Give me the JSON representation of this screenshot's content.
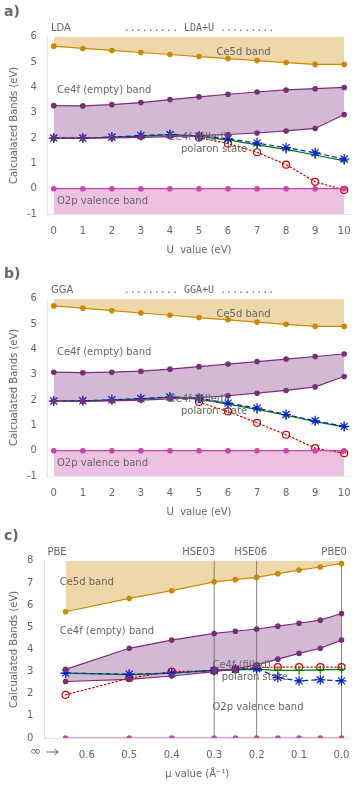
{
  "chart_data": [
    {
      "type": "line",
      "title": "a)",
      "xlabel": "U  value (eV)",
      "ylabel": "Calcualated Bands (eV)",
      "x": [
        0,
        1,
        2,
        3,
        4,
        5,
        6,
        7,
        8,
        9,
        10
      ],
      "xlim": [
        -0.2,
        10.2
      ],
      "xticks": [
        0,
        1,
        2,
        3,
        4,
        5,
        6,
        7,
        8,
        9,
        10
      ],
      "ylim": [
        -1,
        6
      ],
      "yticks": [
        -1,
        0,
        1,
        2,
        3,
        4,
        5,
        6
      ],
      "grid": false,
      "series": [
        {
          "type": "area",
          "color": "#cc8800",
          "marker": "circle",
          "line_style": "solid",
          "values": [
            5.63,
            5.54,
            5.46,
            5.38,
            5.3,
            5.22,
            5.14,
            5.06,
            4.98,
            4.91,
            4.91
          ]
        },
        {
          "type": "area",
          "color": "#7a2d7a",
          "marker": "circle",
          "line_style": "solid",
          "values": [
            3.28,
            3.27,
            3.32,
            3.4,
            3.52,
            3.63,
            3.73,
            3.82,
            3.9,
            3.95,
            4.0
          ]
        },
        {
          "type": "line",
          "color": "#7a2d7a",
          "marker": "circle",
          "line_style": "solid",
          "values": [
            2.0,
            2.0,
            2.01,
            2.03,
            2.06,
            2.1,
            2.14,
            2.2,
            2.28,
            2.38,
            2.93
          ]
        },
        {
          "type": "area",
          "color": "#cc44aa",
          "marker": "circle",
          "line_style": "solid",
          "values": [
            0.0,
            0.0,
            0.0,
            0.0,
            0.0,
            0.0,
            0.0,
            0.0,
            0.0,
            0.0,
            0.0
          ]
        },
        {
          "type": "line",
          "color": "#0022cc",
          "marker": "star",
          "line_style": "dashed",
          "values": [
            2.0,
            2.0,
            2.04,
            2.1,
            2.14,
            2.08,
            1.97,
            1.8,
            1.62,
            1.42,
            1.17
          ]
        },
        {
          "type": "line",
          "color": "#007700",
          "marker": "plus",
          "line_style": "solid",
          "values": [
            2.0,
            2.0,
            2.03,
            2.08,
            2.13,
            2.07,
            1.93,
            1.73,
            1.55,
            1.33,
            1.1
          ]
        },
        {
          "type": "line",
          "color": "#cc0000",
          "marker": "open_circle",
          "line_style": "dotted",
          "values": [
            null,
            null,
            null,
            null,
            null,
            2.02,
            1.78,
            1.44,
            0.95,
            0.27,
            -0.05
          ]
        }
      ],
      "annotations": [
        "LDA",
        "......... LDA+U .........",
        "Ce5d band",
        "Ce4f (empty) band",
        "Ce4f (filled)",
        "polaron state",
        "O2p valence band"
      ]
    },
    {
      "type": "line",
      "title": "b)",
      "xlabel": "U  value (eV)",
      "ylabel": "Calcualated Bands (eV)",
      "x": [
        0,
        1,
        2,
        3,
        4,
        5,
        6,
        7,
        8,
        9,
        10
      ],
      "xlim": [
        -0.2,
        10.2
      ],
      "xticks": [
        0,
        1,
        2,
        3,
        4,
        5,
        6,
        7,
        8,
        9,
        10
      ],
      "ylim": [
        -1,
        6
      ],
      "yticks": [
        -1,
        0,
        1,
        2,
        3,
        4,
        5,
        6
      ],
      "grid": false,
      "series": [
        {
          "type": "area",
          "color": "#cc8800",
          "marker": "circle",
          "line_style": "solid",
          "values": [
            5.72,
            5.63,
            5.53,
            5.44,
            5.35,
            5.26,
            5.17,
            5.08,
            4.99,
            4.91,
            4.91
          ]
        },
        {
          "type": "area",
          "color": "#7a2d7a",
          "marker": "circle",
          "line_style": "solid",
          "values": [
            3.1,
            3.08,
            3.1,
            3.14,
            3.22,
            3.32,
            3.42,
            3.52,
            3.62,
            3.72,
            3.82
          ]
        },
        {
          "type": "line",
          "color": "#7a2d7a",
          "marker": "circle",
          "line_style": "solid",
          "values": [
            1.96,
            1.95,
            1.97,
            2.0,
            2.05,
            2.1,
            2.17,
            2.27,
            2.38,
            2.52,
            2.93
          ]
        },
        {
          "type": "area",
          "color": "#cc44aa",
          "marker": "circle",
          "line_style": "solid",
          "values": [
            0.0,
            0.0,
            0.0,
            0.0,
            0.0,
            0.0,
            0.0,
            0.0,
            0.0,
            0.0,
            0.0
          ]
        },
        {
          "type": "line",
          "color": "#0022cc",
          "marker": "star",
          "line_style": "dashed",
          "values": [
            1.96,
            1.97,
            2.01,
            2.06,
            2.12,
            2.07,
            1.88,
            1.68,
            1.43,
            1.18,
            0.96
          ]
        },
        {
          "type": "line",
          "color": "#007700",
          "marker": "plus",
          "line_style": "solid",
          "values": [
            1.96,
            1.97,
            2.0,
            2.05,
            2.11,
            2.04,
            1.84,
            1.63,
            1.4,
            1.15,
            0.94
          ]
        },
        {
          "type": "line",
          "color": "#cc0000",
          "marker": "open_circle",
          "line_style": "dotted",
          "values": [
            null,
            null,
            null,
            null,
            null,
            1.92,
            1.55,
            1.1,
            0.63,
            0.1,
            -0.1
          ]
        }
      ],
      "annotations": [
        "GGA",
        "......... GGA+U .........",
        "Ce5d band",
        "Ce4f (empty) band",
        "Ce4f (filled)",
        "polaron state",
        "O2p valence band"
      ]
    },
    {
      "type": "line",
      "title": "c)",
      "xlabel": "μ value (Å⁻¹)",
      "ylabel": "Calcualated Bands (eV)",
      "x": [
        0.65,
        0.5,
        0.4,
        0.3,
        0.25,
        0.2,
        0.15,
        0.1,
        0.05,
        0.0
      ],
      "xlim": [
        0.7,
        -0.02
      ],
      "xticks": [
        0.6,
        0.5,
        0.4,
        0.3,
        0.2,
        0.1,
        {
          "value": 0.0,
          "label": "0.0"
        }
      ],
      "ylim": [
        0,
        8
      ],
      "yticks": [
        0,
        1,
        2,
        3,
        4,
        5,
        6,
        7,
        8
      ],
      "grid": false,
      "vlines": [
        0.3,
        0.2,
        0.0
      ],
      "series": [
        {
          "type": "area",
          "color": "#cc8800",
          "marker": "circle",
          "line_style": "solid",
          "values": [
            5.7,
            6.3,
            6.65,
            7.05,
            7.15,
            7.25,
            7.42,
            7.58,
            7.72,
            7.88
          ]
        },
        {
          "type": "area",
          "color": "#7a2d7a",
          "marker": "circle",
          "line_style": "solid",
          "values": [
            3.1,
            4.05,
            4.42,
            4.72,
            4.82,
            4.92,
            5.05,
            5.18,
            5.32,
            5.62
          ]
        },
        {
          "type": "line",
          "color": "#7a2d7a",
          "marker": "circle",
          "line_style": "solid",
          "values": [
            2.55,
            2.65,
            2.8,
            3.0,
            3.12,
            3.3,
            3.56,
            3.82,
            4.05,
            4.42
          ]
        },
        {
          "type": "area",
          "color": "#cc44aa",
          "marker": "circle",
          "line_style": "solid",
          "values": [
            0.0,
            0.0,
            0.0,
            0.0,
            0.0,
            0.0,
            0.0,
            0.0,
            0.0,
            0.0
          ]
        },
        {
          "type": "line",
          "color": "#0022cc",
          "marker": "star",
          "line_style": "dashed",
          "values": [
            2.93,
            2.88,
            2.93,
            3.05,
            3.1,
            3.14,
            2.73,
            2.58,
            2.63,
            2.58
          ]
        },
        {
          "type": "line",
          "color": "#007700",
          "marker": "plus",
          "line_style": "solid",
          "values": [
            2.93,
            2.86,
            2.93,
            3.05,
            3.08,
            3.1,
            3.05,
            3.05,
            3.08,
            3.1
          ]
        },
        {
          "type": "line",
          "color": "#cc0000",
          "marker": "open_circle",
          "line_style": "dotted",
          "values": [
            1.95,
            2.7,
            3.0,
            3.04,
            3.1,
            3.18,
            3.2,
            3.2,
            3.2,
            3.2
          ]
        }
      ],
      "annotations": [
        "PBE",
        "HSE03",
        "HSE06",
        "PBE0",
        "Ce5d band",
        "Ce4f (empty) band",
        "Ce4f (filled)",
        "polaron state",
        "O2p valence band",
        "∞"
      ]
    }
  ]
}
